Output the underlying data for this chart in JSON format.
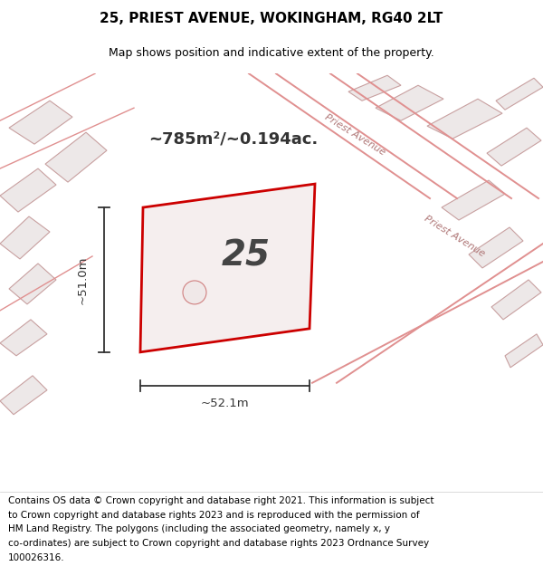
{
  "title": "25, PRIEST AVENUE, WOKINGHAM, RG40 2LT",
  "subtitle": "Map shows position and indicative extent of the property.",
  "area_text": "~785m²/~0.194ac.",
  "number_label": "25",
  "dim_horizontal": "~52.1m",
  "dim_vertical": "~51.0m",
  "road_label1": "Priest Avenue",
  "road_label2": "Priest Avenue",
  "footer_lines": [
    "Contains OS data © Crown copyright and database right 2021. This information is subject",
    "to Crown copyright and database rights 2023 and is reproduced with the permission of",
    "HM Land Registry. The polygons (including the associated geometry, namely x, y",
    "co-ordinates) are subject to Crown copyright and database rights 2023 Ordnance Survey",
    "100026316."
  ],
  "map_bg_color": "#f2e8e8",
  "plot_color": "#cc0000",
  "dim_line_color": "#333333",
  "text_color": "#000000",
  "footer_fontsize": 7.5,
  "title_fontsize": 11,
  "subtitle_fontsize": 9,
  "number_fontsize": 28,
  "area_fontsize": 13
}
